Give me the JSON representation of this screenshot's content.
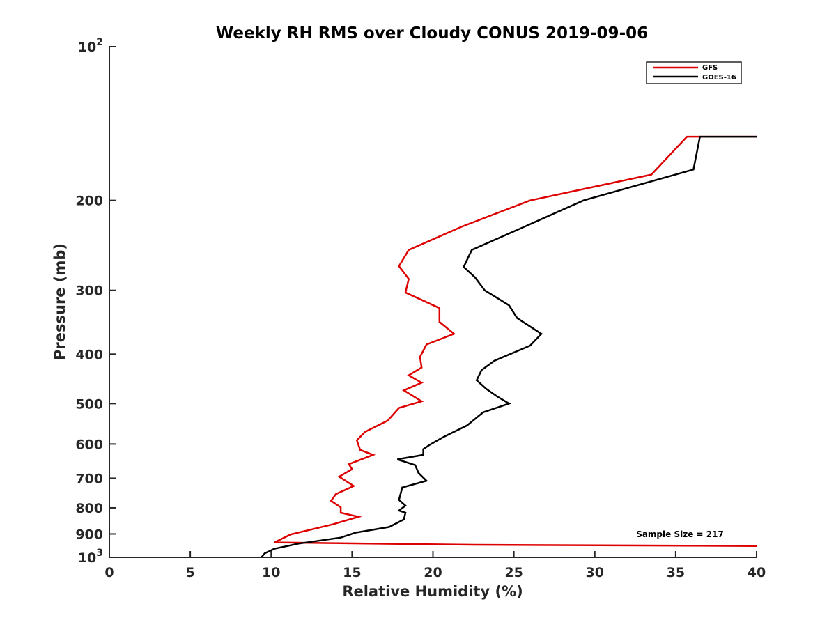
{
  "chart_data": {
    "type": "line",
    "title": "Weekly RH RMS over Cloudy CONUS 2019-09-06",
    "xlabel": "Relative Humidity (%)",
    "ylabel": "Pressure (mb)",
    "xlim": [
      0,
      40
    ],
    "ylim": [
      100,
      1000
    ],
    "y_scale": "log",
    "y_reversed": true,
    "x_ticks": [
      "0",
      "5",
      "10",
      "15",
      "20",
      "25",
      "30",
      "35",
      "40"
    ],
    "y_ticks": [
      {
        "value": 100,
        "base": "10",
        "exp": "2"
      },
      {
        "value": 200,
        "label": "200"
      },
      {
        "value": 300,
        "label": "300"
      },
      {
        "value": 400,
        "label": "400"
      },
      {
        "value": 500,
        "label": "500"
      },
      {
        "value": 600,
        "label": "600"
      },
      {
        "value": 700,
        "label": "700"
      },
      {
        "value": 800,
        "label": "800"
      },
      {
        "value": 900,
        "label": "900"
      },
      {
        "value": 1000,
        "base": "10",
        "exp": "3"
      }
    ],
    "grid": false,
    "legend_position": "top-right",
    "annotation": "Sample Size = 217",
    "series": [
      {
        "name": "GFS",
        "color": "#dd0000",
        "points": [
          [
            40,
            150
          ],
          [
            35.7,
            150
          ],
          [
            33.5,
            178
          ],
          [
            26,
            200
          ],
          [
            21.8,
            225
          ],
          [
            18.5,
            250
          ],
          [
            17.9,
            269
          ],
          [
            18.5,
            285
          ],
          [
            18.3,
            303
          ],
          [
            20.4,
            325
          ],
          [
            20.4,
            346
          ],
          [
            21.3,
            365
          ],
          [
            19.6,
            383
          ],
          [
            19.2,
            405
          ],
          [
            19.3,
            425
          ],
          [
            18.5,
            440
          ],
          [
            19.3,
            455
          ],
          [
            18.2,
            471
          ],
          [
            19.3,
            495
          ],
          [
            17.9,
            510
          ],
          [
            17.2,
            540
          ],
          [
            15.8,
            568
          ],
          [
            15.3,
            590
          ],
          [
            15.5,
            616
          ],
          [
            16.3,
            630
          ],
          [
            14.8,
            657
          ],
          [
            15.0,
            672
          ],
          [
            14.2,
            695
          ],
          [
            15.1,
            725
          ],
          [
            14.0,
            752
          ],
          [
            13.7,
            775
          ],
          [
            14.3,
            798
          ],
          [
            14.3,
            818
          ],
          [
            15.4,
            833
          ],
          [
            13.8,
            862
          ],
          [
            11.2,
            902
          ],
          [
            10.2,
            935
          ],
          [
            22.5,
            945
          ],
          [
            40,
            950
          ]
        ]
      },
      {
        "name": "GOES-16",
        "color": "#000000",
        "points": [
          [
            40,
            150
          ],
          [
            36.5,
            150
          ],
          [
            36.1,
            174
          ],
          [
            29.3,
            200
          ],
          [
            25,
            230
          ],
          [
            22.4,
            250
          ],
          [
            21.9,
            270
          ],
          [
            22.6,
            283
          ],
          [
            23.2,
            300
          ],
          [
            24.7,
            321
          ],
          [
            25.2,
            340
          ],
          [
            26.7,
            365
          ],
          [
            26.0,
            385
          ],
          [
            23.8,
            412
          ],
          [
            23.0,
            430
          ],
          [
            22.7,
            450
          ],
          [
            23.3,
            468
          ],
          [
            24.0,
            485
          ],
          [
            24.7,
            500
          ],
          [
            23.1,
            520
          ],
          [
            22.1,
            552
          ],
          [
            20.7,
            580
          ],
          [
            19.8,
            602
          ],
          [
            19.4,
            614
          ],
          [
            19.4,
            630
          ],
          [
            17.8,
            643
          ],
          [
            18.9,
            660
          ],
          [
            19.1,
            683
          ],
          [
            19.6,
            708
          ],
          [
            18.1,
            730
          ],
          [
            17.9,
            772
          ],
          [
            18.3,
            792
          ],
          [
            17.9,
            810
          ],
          [
            18.3,
            818
          ],
          [
            18.2,
            843
          ],
          [
            17.3,
            872
          ],
          [
            15.2,
            895
          ],
          [
            14.3,
            915
          ],
          [
            11.7,
            940
          ],
          [
            10.2,
            962
          ],
          [
            9.6,
            982
          ],
          [
            9.4,
            1000
          ]
        ]
      }
    ]
  }
}
